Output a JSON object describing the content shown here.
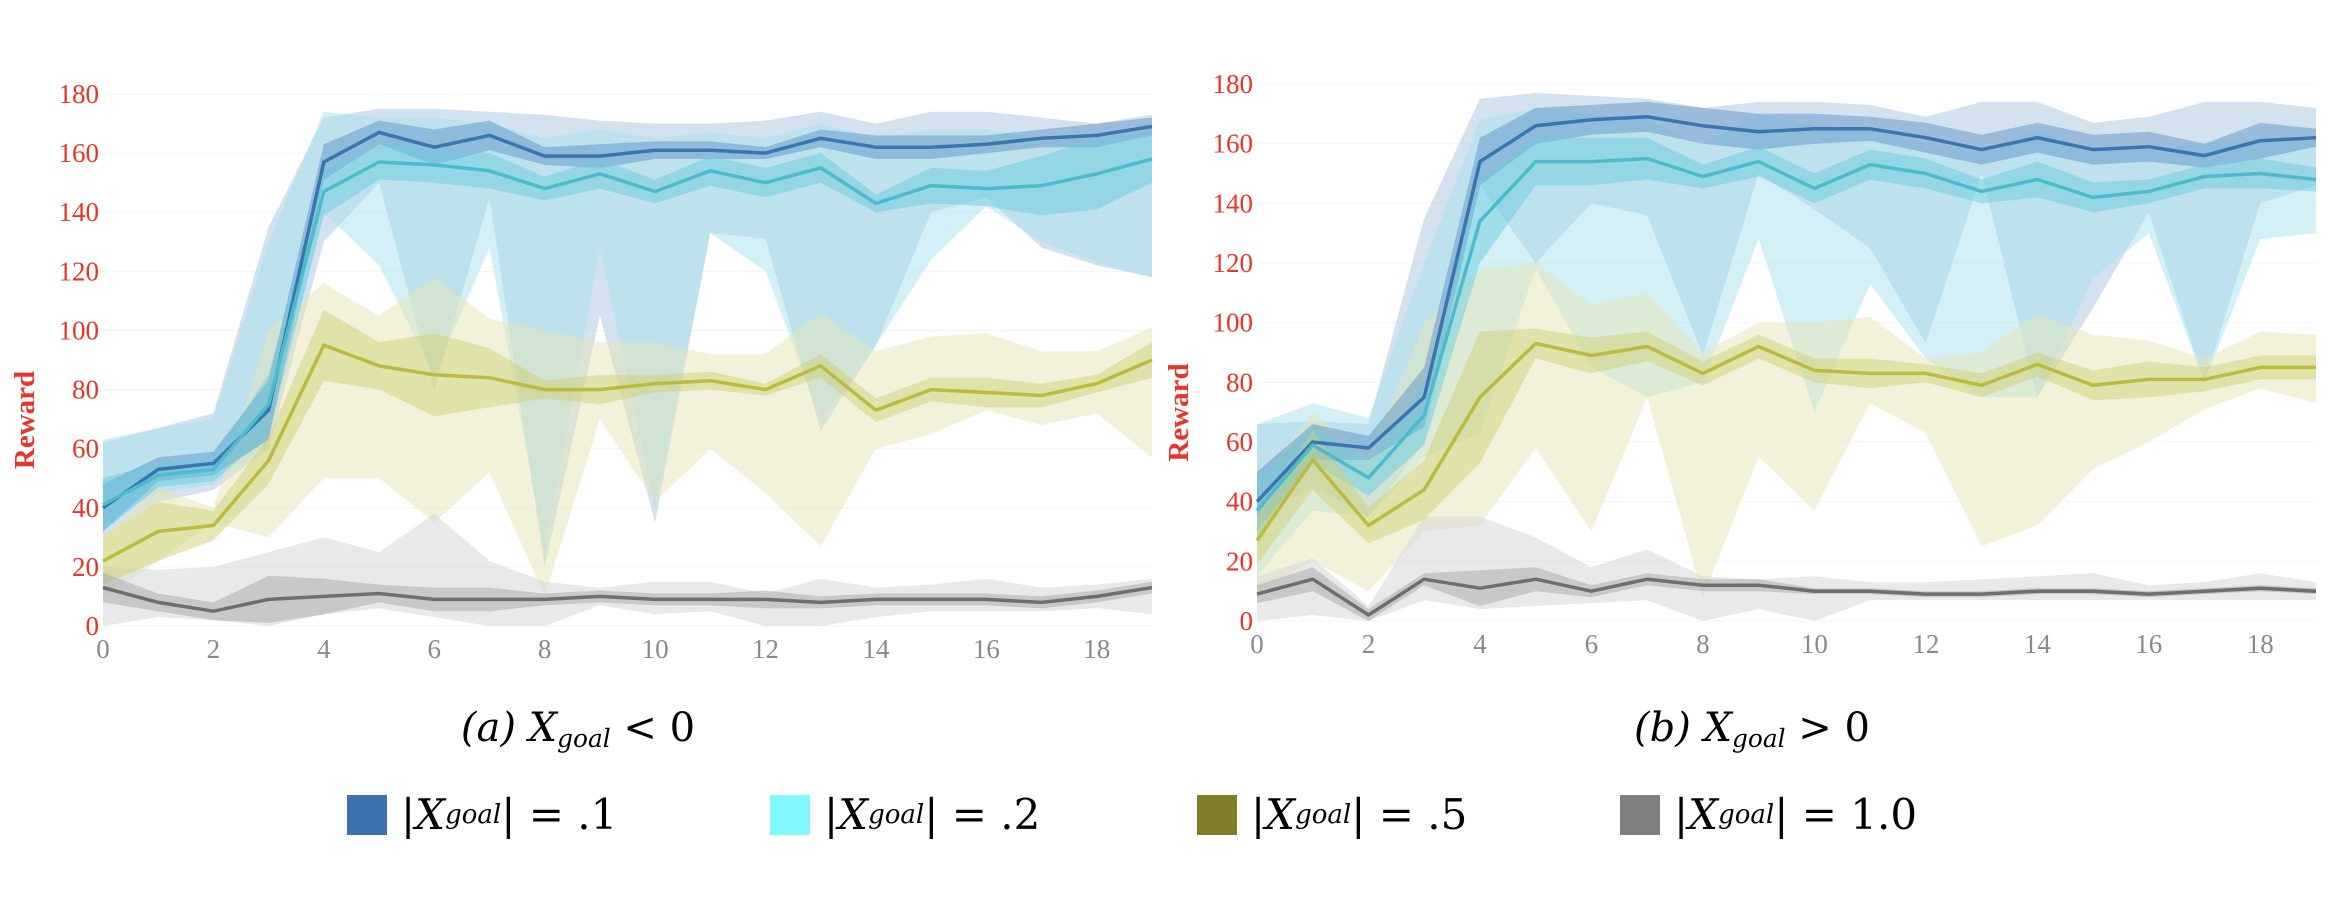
{
  "chart_data": [
    {
      "type": "line",
      "caption": {
        "prefix": "(a)",
        "var": "X",
        "sub": "goal",
        "rel": "< 0"
      },
      "ylabel": "Reward",
      "xlim": [
        0,
        19
      ],
      "ylim": [
        0,
        180
      ],
      "xticks": [
        0,
        2,
        4,
        6,
        8,
        10,
        12,
        14,
        16,
        18
      ],
      "yticks": [
        0,
        20,
        40,
        60,
        80,
        100,
        120,
        140,
        160,
        180
      ],
      "x": [
        0,
        1,
        2,
        3,
        4,
        5,
        6,
        7,
        8,
        9,
        10,
        11,
        12,
        13,
        14,
        15,
        16,
        17,
        18,
        19
      ],
      "series": [
        {
          "key": "g01",
          "mean": [
            40,
            53,
            55,
            73,
            157,
            167,
            162,
            166,
            159,
            159,
            161,
            161,
            160,
            165,
            162,
            162,
            163,
            165,
            166,
            169
          ],
          "std": [
            8,
            4,
            4,
            10,
            6,
            4,
            6,
            5,
            3,
            4,
            3,
            3,
            2,
            3,
            4,
            4,
            3,
            3,
            4,
            3
          ],
          "lo": [
            30,
            42,
            46,
            60,
            130,
            150,
            80,
            145,
            20,
            105,
            35,
            133,
            131,
            66,
            95,
            140,
            145,
            128,
            122,
            118
          ],
          "hi": [
            62,
            67,
            72,
            135,
            172,
            175,
            175,
            174,
            173,
            171,
            170,
            170,
            171,
            174,
            170,
            174,
            174,
            172,
            170,
            173
          ]
        },
        {
          "key": "g02",
          "mean": [
            41,
            51,
            53,
            75,
            147,
            157,
            156,
            154,
            148,
            153,
            147,
            154,
            150,
            155,
            143,
            149,
            148,
            149,
            153,
            158
          ],
          "std": [
            9,
            4,
            4,
            10,
            8,
            6,
            6,
            6,
            4,
            5,
            4,
            5,
            5,
            5,
            3,
            6,
            6,
            10,
            12,
            8
          ],
          "lo": [
            35,
            45,
            48,
            62,
            140,
            122,
            85,
            128,
            25,
            128,
            40,
            133,
            120,
            70,
            95,
            124,
            142,
            130,
            123,
            118
          ],
          "hi": [
            63,
            67,
            70,
            130,
            174,
            172,
            172,
            170,
            165,
            168,
            165,
            167,
            165,
            170,
            165,
            168,
            168,
            165,
            165,
            168
          ]
        },
        {
          "key": "g05",
          "mean": [
            22,
            32,
            34,
            56,
            95,
            88,
            85,
            84,
            80,
            80,
            82,
            83,
            80,
            88,
            73,
            80,
            79,
            78,
            82,
            90
          ],
          "std": [
            8,
            10,
            5,
            8,
            12,
            8,
            14,
            10,
            3,
            5,
            3,
            3,
            2,
            4,
            4,
            4,
            5,
            4,
            3,
            6
          ],
          "lo": [
            10,
            22,
            35,
            30,
            50,
            50,
            35,
            52,
            10,
            70,
            42,
            60,
            45,
            27,
            60,
            65,
            73,
            68,
            72,
            57
          ],
          "hi": [
            30,
            47,
            40,
            100,
            116,
            105,
            118,
            104,
            100,
            96,
            96,
            92,
            92,
            106,
            93,
            98,
            99,
            93,
            93,
            101
          ]
        },
        {
          "key": "g10",
          "mean": [
            13,
            8,
            5,
            9,
            10,
            11,
            9,
            9,
            9,
            10,
            9,
            9,
            9,
            8,
            9,
            9,
            9,
            8,
            10,
            13
          ],
          "std": [
            5,
            3,
            3,
            8,
            6,
            3,
            4,
            4,
            2,
            2,
            2,
            2,
            3,
            2,
            2,
            2,
            2,
            2,
            2,
            2
          ],
          "lo": [
            0,
            3,
            2,
            0,
            4,
            6,
            3,
            0,
            0,
            7,
            4,
            5,
            0,
            0,
            3,
            5,
            5,
            5,
            6,
            4
          ],
          "hi": [
            20,
            19,
            20,
            25,
            30,
            25,
            38,
            22,
            15,
            13,
            15,
            15,
            11,
            16,
            13,
            14,
            16,
            13,
            14,
            16
          ]
        }
      ]
    },
    {
      "type": "line",
      "caption": {
        "prefix": "(b)",
        "var": "X",
        "sub": "goal",
        "rel": "> 0"
      },
      "ylabel": "Reward",
      "xlim": [
        0,
        19
      ],
      "ylim": [
        0,
        180
      ],
      "xticks": [
        0,
        2,
        4,
        6,
        8,
        10,
        12,
        14,
        16,
        18
      ],
      "yticks": [
        0,
        20,
        40,
        60,
        80,
        100,
        120,
        140,
        160,
        180
      ],
      "x": [
        0,
        1,
        2,
        3,
        4,
        5,
        6,
        7,
        8,
        9,
        10,
        11,
        12,
        13,
        14,
        15,
        16,
        17,
        18,
        19
      ],
      "series": [
        {
          "key": "g01",
          "mean": [
            40,
            60,
            58,
            75,
            154,
            166,
            168,
            169,
            166,
            164,
            165,
            165,
            162,
            158,
            162,
            158,
            159,
            156,
            161,
            162
          ],
          "std": [
            10,
            6,
            4,
            10,
            8,
            6,
            5,
            5,
            6,
            6,
            5,
            4,
            5,
            5,
            5,
            5,
            5,
            4,
            6,
            3
          ],
          "lo": [
            35,
            45,
            35,
            60,
            146,
            120,
            140,
            136,
            89,
            150,
            138,
            125,
            93,
            150,
            75,
            105,
            137,
            80,
            140,
            146
          ],
          "hi": [
            66,
            67,
            66,
            135,
            175,
            177,
            176,
            175,
            172,
            174,
            174,
            173,
            169,
            174,
            174,
            167,
            169,
            174,
            174,
            172
          ]
        },
        {
          "key": "g02",
          "mean": [
            37,
            59,
            48,
            69,
            134,
            154,
            154,
            155,
            149,
            154,
            145,
            153,
            150,
            144,
            148,
            142,
            144,
            149,
            150,
            148
          ],
          "std": [
            10,
            6,
            6,
            10,
            14,
            8,
            8,
            7,
            4,
            5,
            5,
            5,
            5,
            4,
            6,
            5,
            4,
            4,
            5,
            4
          ],
          "lo": [
            15,
            37,
            35,
            55,
            63,
            118,
            85,
            75,
            80,
            128,
            70,
            113,
            88,
            75,
            75,
            115,
            130,
            80,
            128,
            130
          ],
          "hi": [
            66,
            73,
            68,
            120,
            168,
            172,
            170,
            168,
            160,
            170,
            166,
            165,
            160,
            158,
            164,
            158,
            158,
            160,
            162,
            162
          ]
        },
        {
          "key": "g05",
          "mean": [
            27,
            54,
            32,
            44,
            75,
            93,
            89,
            92,
            83,
            92,
            84,
            83,
            83,
            79,
            86,
            79,
            81,
            81,
            85,
            85
          ],
          "std": [
            8,
            10,
            6,
            10,
            22,
            5,
            6,
            5,
            4,
            4,
            4,
            5,
            3,
            4,
            4,
            5,
            6,
            4,
            4,
            4
          ],
          "lo": [
            10,
            20,
            10,
            30,
            32,
            58,
            30,
            75,
            8,
            55,
            37,
            73,
            63,
            25,
            32,
            51,
            60,
            71,
            78,
            73
          ],
          "hi": [
            45,
            70,
            55,
            100,
            118,
            120,
            106,
            110,
            90,
            100,
            100,
            102,
            88,
            90,
            103,
            96,
            94,
            88,
            97,
            96
          ]
        },
        {
          "key": "g10",
          "mean": [
            9,
            14,
            2,
            14,
            11,
            14,
            10,
            14,
            12,
            12,
            10,
            10,
            9,
            9,
            10,
            10,
            9,
            10,
            11,
            10
          ],
          "std": [
            3,
            4,
            2,
            2,
            6,
            4,
            2,
            2,
            2,
            2,
            1,
            1,
            1,
            1,
            1,
            1,
            1,
            1,
            1,
            1
          ],
          "lo": [
            0,
            2,
            0,
            7,
            4,
            5,
            6,
            7,
            0,
            4,
            0,
            7,
            7,
            7,
            7,
            7,
            7,
            7,
            7,
            7
          ],
          "hi": [
            15,
            21,
            5,
            35,
            35,
            28,
            18,
            24,
            15,
            14,
            15,
            13,
            13,
            14,
            15,
            16,
            12,
            13,
            16,
            13
          ]
        }
      ]
    }
  ],
  "legend": [
    {
      "key": "g01",
      "var": "X",
      "sub": "goal",
      "value": "= .1",
      "swatch": "#3a72ae",
      "line": "#3c74b0",
      "band": "#5f95c6",
      "outer": "#a9c4de"
    },
    {
      "key": "g02",
      "var": "X",
      "sub": "goal",
      "value": "= .2",
      "swatch": "#7ff8ff",
      "line": "#4bbccc",
      "band": "#6ccbe0",
      "outer": "#a6e2ec"
    },
    {
      "key": "g05",
      "var": "X",
      "sub": "goal",
      "value": "= .5",
      "swatch": "#7e7e28",
      "line": "#bcbc3c",
      "band": "#cfcf7a",
      "outer": "#e6e6b8"
    },
    {
      "key": "g10",
      "var": "X",
      "sub": "goal",
      "value": "= 1.0",
      "swatch": "#7f7f7f",
      "line": "#6e6e6e",
      "band": "#a8a8a8",
      "outer": "#d4d4d4"
    }
  ]
}
